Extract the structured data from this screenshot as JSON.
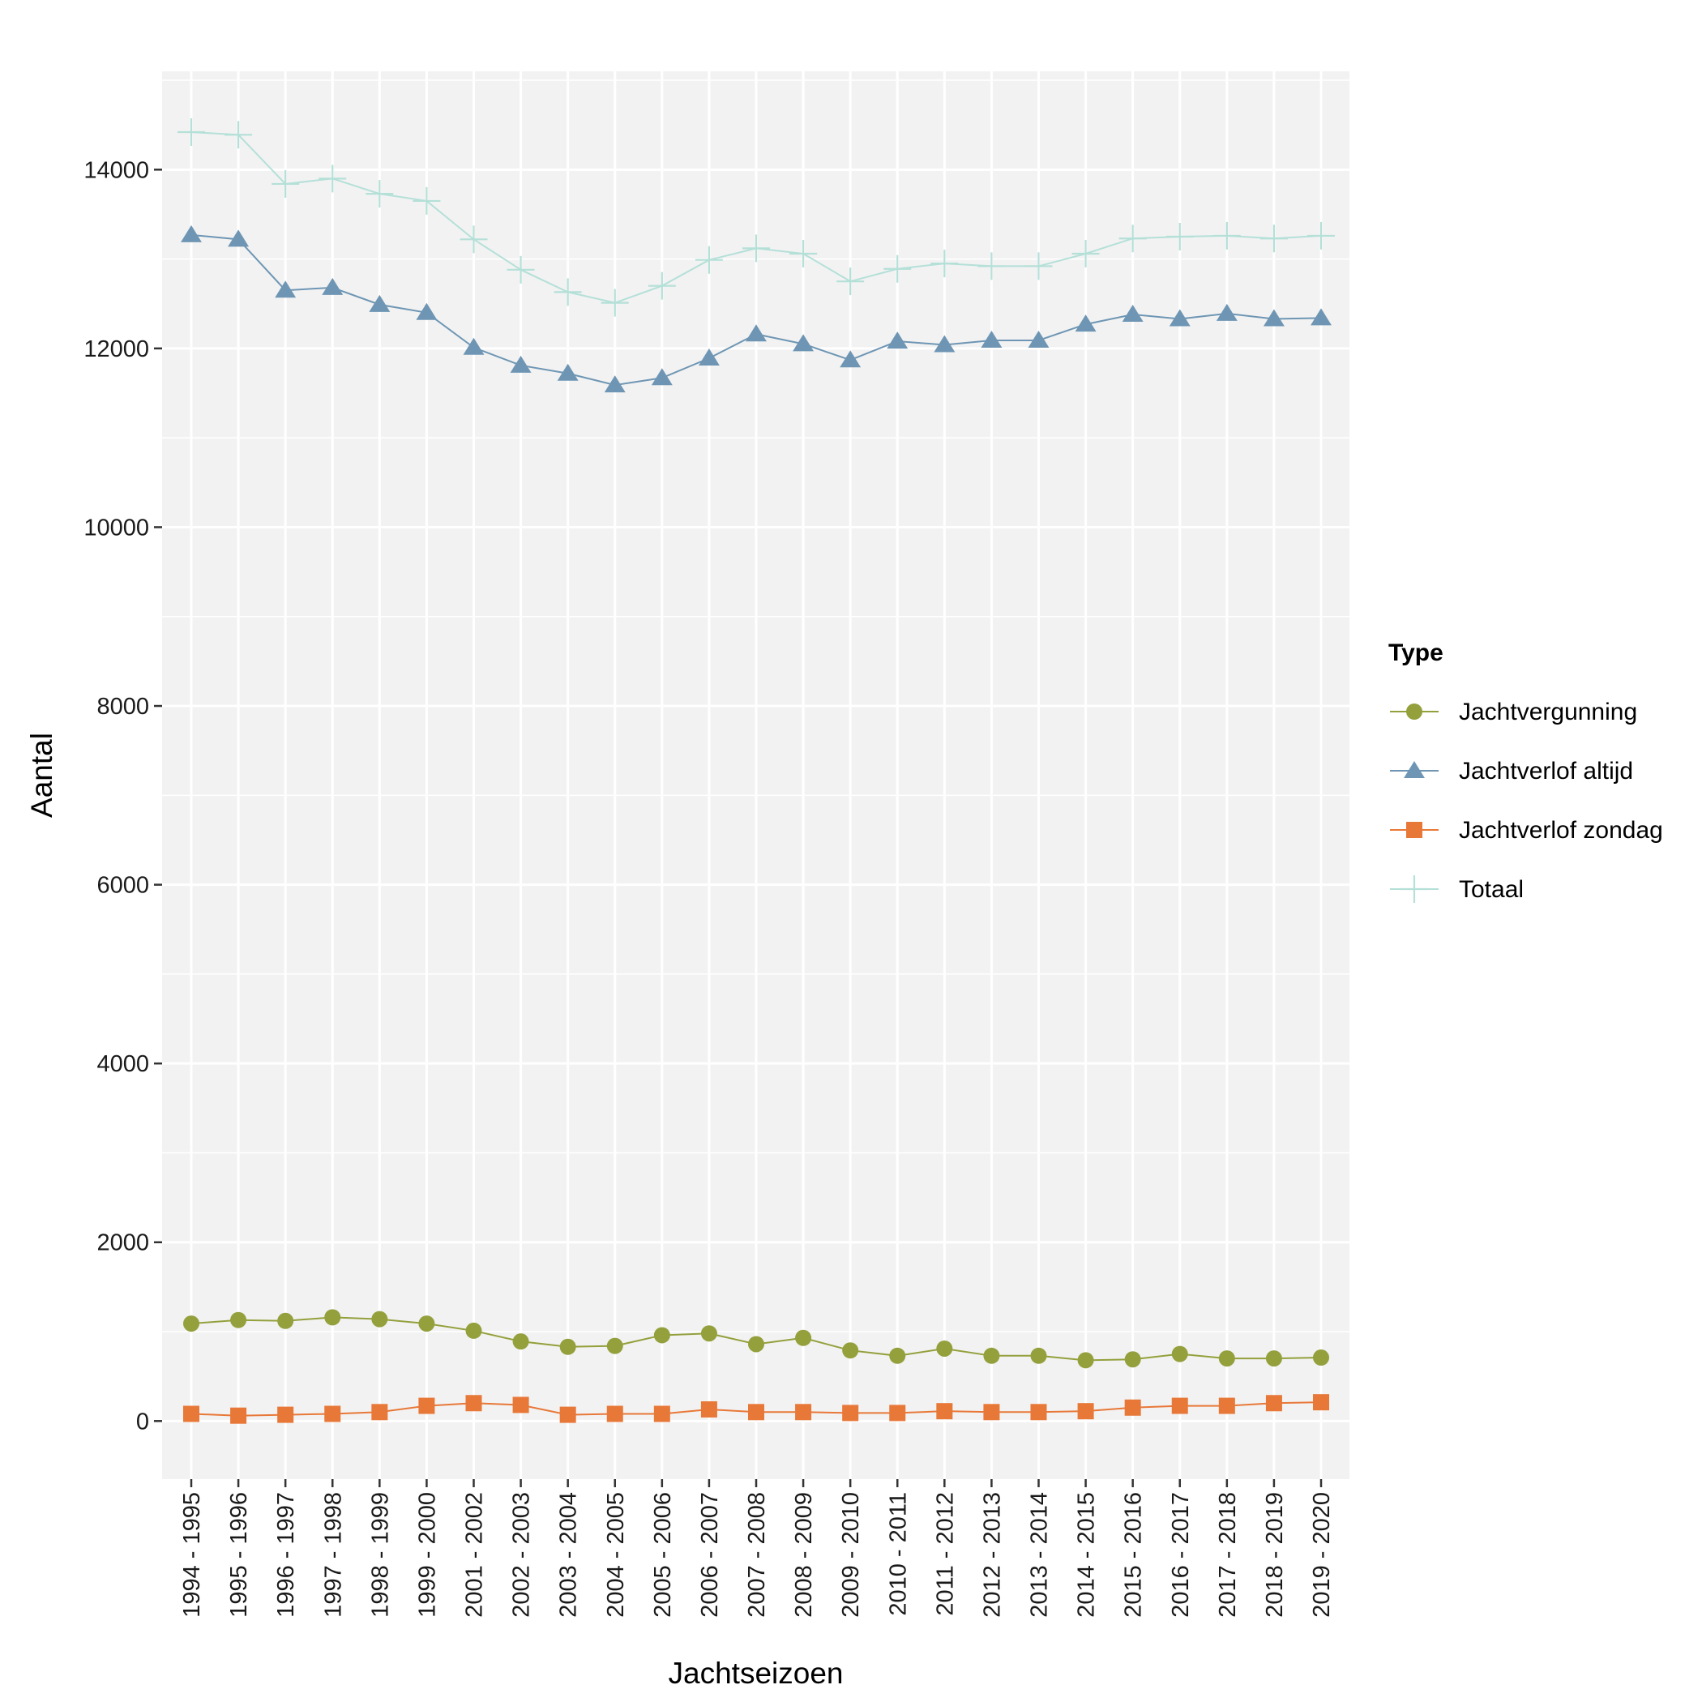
{
  "chart_data": {
    "type": "line",
    "xlabel": "Jachtseizoen",
    "ylabel": "Aantal",
    "ylim": [
      -650,
      15100
    ],
    "yticks": [
      0,
      2000,
      4000,
      6000,
      8000,
      10000,
      12000,
      14000
    ],
    "grid": true,
    "legend": {
      "title": "Type",
      "position": "right"
    },
    "categories": [
      "1994 - 1995",
      "1995 - 1996",
      "1996 - 1997",
      "1997 - 1998",
      "1998 - 1999",
      "1999 - 2000",
      "2001 - 2002",
      "2002 - 2003",
      "2003 - 2004",
      "2004 - 2005",
      "2005 - 2006",
      "2006 - 2007",
      "2007 - 2008",
      "2008 - 2009",
      "2009 - 2010",
      "2010 - 2011",
      "2011 - 2012",
      "2012 - 2013",
      "2013 - 2014",
      "2014 - 2015",
      "2015 - 2016",
      "2016 - 2017",
      "2017 - 2018",
      "2018 - 2019",
      "2019 - 2020"
    ],
    "series": [
      {
        "name": "Jachtvergunning",
        "marker": "circle",
        "color": "#94A03C",
        "values": [
          1090,
          1130,
          1120,
          1160,
          1140,
          1090,
          1010,
          890,
          830,
          840,
          960,
          980,
          860,
          930,
          790,
          730,
          810,
          730,
          730,
          680,
          690,
          750,
          700,
          700,
          710
        ]
      },
      {
        "name": "Jachtverlof altijd",
        "marker": "triangle",
        "color": "#6E96B4",
        "values": [
          13270,
          13220,
          12650,
          12680,
          12490,
          12400,
          12010,
          11810,
          11720,
          11590,
          11670,
          11890,
          12160,
          12050,
          11870,
          12080,
          12040,
          12090,
          12090,
          12270,
          12380,
          12330,
          12390,
          12330,
          12340
        ]
      },
      {
        "name": "Jachtverlof zondag",
        "marker": "square",
        "color": "#E87838",
        "values": [
          80,
          60,
          70,
          80,
          100,
          170,
          200,
          180,
          70,
          80,
          80,
          130,
          100,
          100,
          90,
          90,
          110,
          100,
          100,
          110,
          150,
          170,
          170,
          200,
          210
        ]
      },
      {
        "name": "Totaal",
        "marker": "plus",
        "color": "#B4E0D8",
        "values": [
          14420,
          14390,
          13840,
          13900,
          13730,
          13650,
          13220,
          12880,
          12630,
          12510,
          12700,
          12990,
          13120,
          13060,
          12750,
          12890,
          12950,
          12920,
          12920,
          13060,
          13230,
          13250,
          13260,
          13230,
          13260
        ]
      }
    ]
  }
}
